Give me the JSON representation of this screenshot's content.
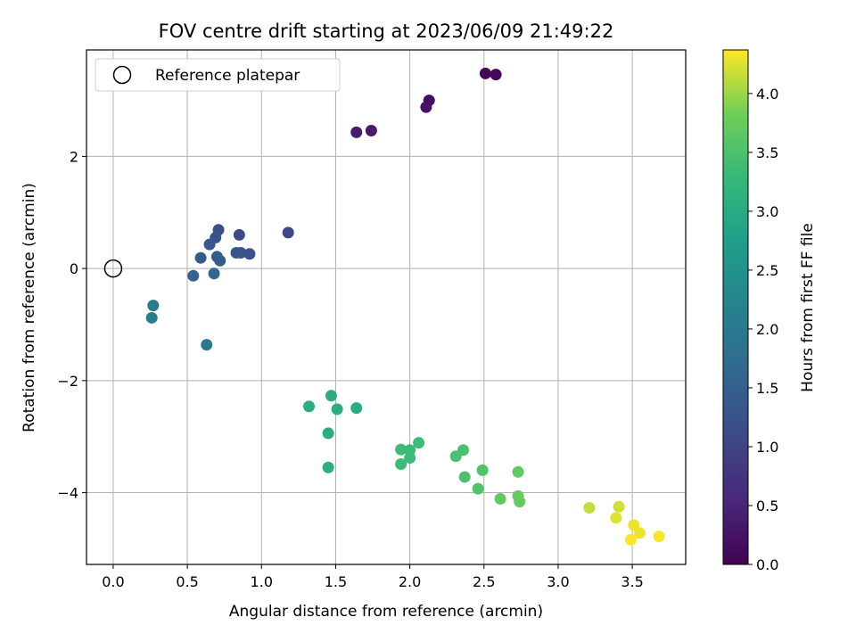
{
  "chart_data": {
    "type": "scatter",
    "title": "FOV centre drift starting at 2023/06/09 21:49:22",
    "xlabel": "Angular distance from reference (arcmin)",
    "ylabel": "Rotation from reference (arcmin)",
    "xlim": [
      -0.18,
      3.86
    ],
    "ylim": [
      -5.28,
      3.9
    ],
    "xticks": [
      0.0,
      0.5,
      1.0,
      1.5,
      2.0,
      2.5,
      3.0,
      3.5
    ],
    "xtick_labels": [
      "0.0",
      "0.5",
      "1.0",
      "1.5",
      "2.0",
      "2.5",
      "3.0",
      "3.5"
    ],
    "yticks": [
      -4,
      -2,
      0,
      2
    ],
    "ytick_labels": [
      "−4",
      "−2",
      "0",
      "2"
    ],
    "grid": true,
    "legend": {
      "placement": "top-left",
      "entries": [
        "Reference platepar"
      ]
    },
    "reference_point": {
      "name": "Reference platepar",
      "x": 0.0,
      "y": 0.0
    },
    "colorbar": {
      "label": "Hours from first FF file",
      "colormap": "viridis",
      "range": [
        0.0,
        4.37
      ],
      "ticks": [
        0.0,
        0.5,
        1.0,
        1.5,
        2.0,
        2.5,
        3.0,
        3.5,
        4.0
      ],
      "tick_labels": [
        "0.0",
        "0.5",
        "1.0",
        "1.5",
        "2.0",
        "2.5",
        "3.0",
        "3.5",
        "4.0"
      ]
    },
    "points": [
      {
        "x": 2.51,
        "y": 3.48,
        "c": 0.05
      },
      {
        "x": 2.58,
        "y": 3.46,
        "c": 0.1
      },
      {
        "x": 2.13,
        "y": 3.0,
        "c": 0.2
      },
      {
        "x": 2.11,
        "y": 2.88,
        "c": 0.25
      },
      {
        "x": 1.74,
        "y": 2.46,
        "c": 0.35
      },
      {
        "x": 1.64,
        "y": 2.43,
        "c": 0.4
      },
      {
        "x": 1.18,
        "y": 0.64,
        "c": 1.05
      },
      {
        "x": 0.85,
        "y": 0.6,
        "c": 1.1
      },
      {
        "x": 0.71,
        "y": 0.69,
        "c": 1.2
      },
      {
        "x": 0.69,
        "y": 0.55,
        "c": 1.25
      },
      {
        "x": 0.65,
        "y": 0.43,
        "c": 1.3
      },
      {
        "x": 0.83,
        "y": 0.28,
        "c": 1.3
      },
      {
        "x": 0.86,
        "y": 0.28,
        "c": 1.3
      },
      {
        "x": 0.92,
        "y": 0.26,
        "c": 1.25
      },
      {
        "x": 0.59,
        "y": 0.19,
        "c": 1.4
      },
      {
        "x": 0.7,
        "y": 0.21,
        "c": 1.4
      },
      {
        "x": 0.72,
        "y": 0.14,
        "c": 1.45
      },
      {
        "x": 0.54,
        "y": -0.13,
        "c": 1.55
      },
      {
        "x": 0.68,
        "y": -0.09,
        "c": 1.6
      },
      {
        "x": 0.27,
        "y": -0.66,
        "c": 2.05
      },
      {
        "x": 0.26,
        "y": -0.88,
        "c": 2.1
      },
      {
        "x": 0.63,
        "y": -1.36,
        "c": 2.0
      },
      {
        "x": 1.32,
        "y": -2.46,
        "c": 3.05
      },
      {
        "x": 1.47,
        "y": -2.27,
        "c": 3.05
      },
      {
        "x": 1.51,
        "y": -2.51,
        "c": 3.05
      },
      {
        "x": 1.64,
        "y": -2.49,
        "c": 3.05
      },
      {
        "x": 1.45,
        "y": -2.94,
        "c": 3.05
      },
      {
        "x": 1.45,
        "y": -3.55,
        "c": 3.05
      },
      {
        "x": 1.94,
        "y": -3.23,
        "c": 3.35
      },
      {
        "x": 2.0,
        "y": -3.24,
        "c": 3.35
      },
      {
        "x": 2.06,
        "y": -3.11,
        "c": 3.35
      },
      {
        "x": 2.0,
        "y": -3.38,
        "c": 3.35
      },
      {
        "x": 1.94,
        "y": -3.49,
        "c": 3.35
      },
      {
        "x": 2.31,
        "y": -3.35,
        "c": 3.5
      },
      {
        "x": 2.36,
        "y": -3.24,
        "c": 3.5
      },
      {
        "x": 2.37,
        "y": -3.72,
        "c": 3.5
      },
      {
        "x": 2.49,
        "y": -3.6,
        "c": 3.55
      },
      {
        "x": 2.46,
        "y": -3.93,
        "c": 3.55
      },
      {
        "x": 2.73,
        "y": -3.63,
        "c": 3.7
      },
      {
        "x": 2.61,
        "y": -4.11,
        "c": 3.7
      },
      {
        "x": 2.73,
        "y": -4.06,
        "c": 3.75
      },
      {
        "x": 2.74,
        "y": -4.16,
        "c": 3.75
      },
      {
        "x": 3.21,
        "y": -4.27,
        "c": 4.15
      },
      {
        "x": 3.41,
        "y": -4.25,
        "c": 4.2
      },
      {
        "x": 3.39,
        "y": -4.45,
        "c": 4.25
      },
      {
        "x": 3.51,
        "y": -4.58,
        "c": 4.3
      },
      {
        "x": 3.55,
        "y": -4.72,
        "c": 4.3
      },
      {
        "x": 3.49,
        "y": -4.84,
        "c": 4.35
      },
      {
        "x": 3.68,
        "y": -4.78,
        "c": 4.35
      }
    ]
  }
}
